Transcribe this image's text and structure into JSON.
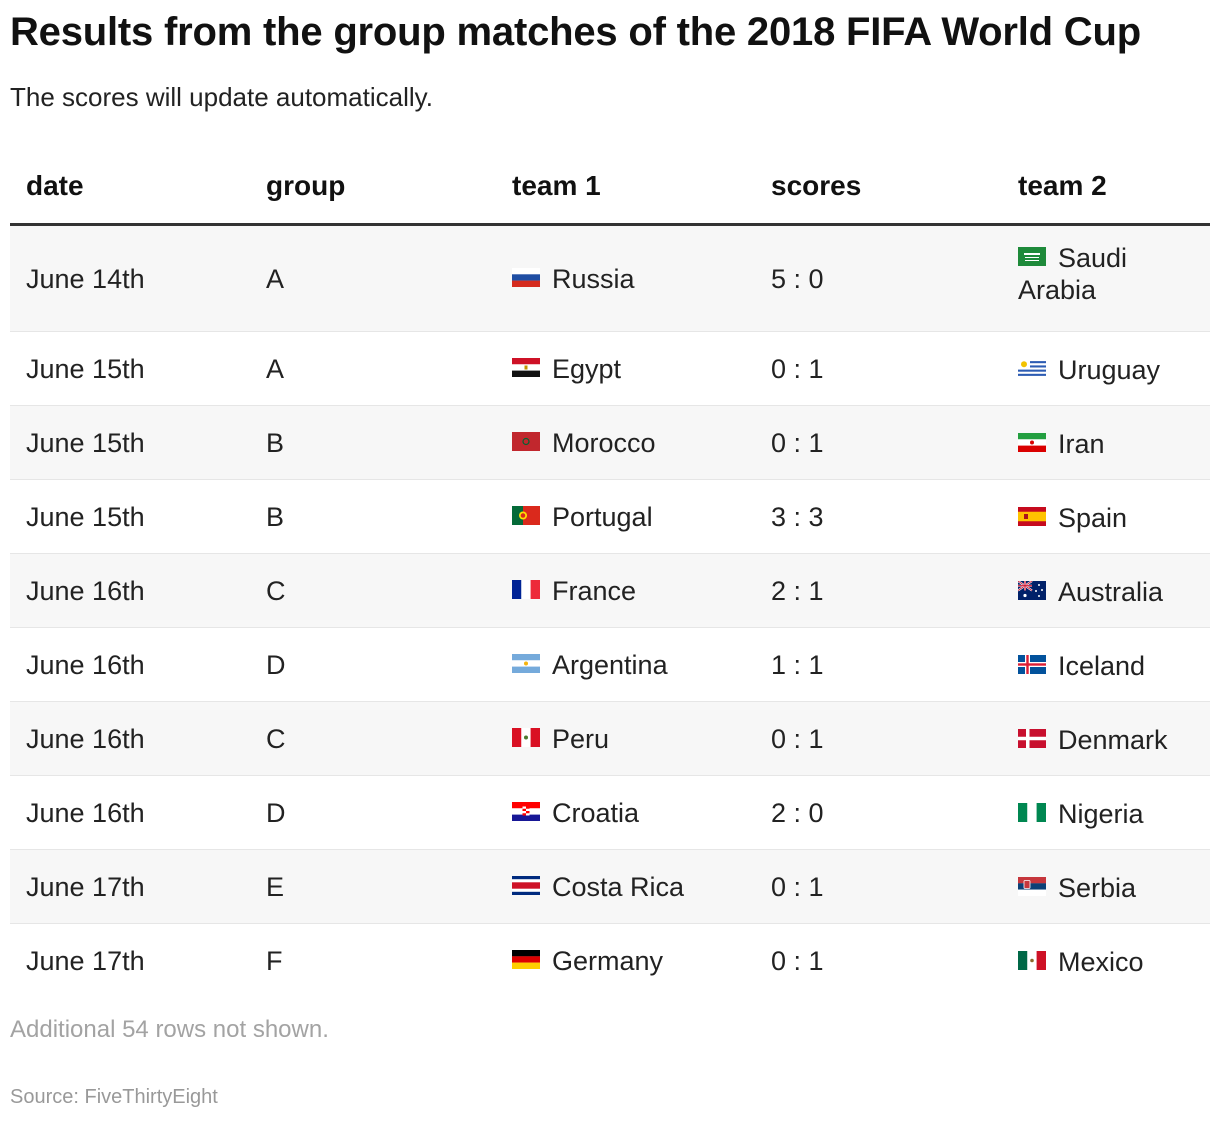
{
  "title": "Results from the group matches of the 2018 FIFA World Cup",
  "subtitle": "The scores will update automatically.",
  "chart_data": {
    "type": "table",
    "columns": [
      "date",
      "group",
      "team 1",
      "scores",
      "team 2"
    ],
    "rows": [
      {
        "date": "June 14th",
        "group": "A",
        "team1": "Russia",
        "flag1": "flag-russia",
        "score": "5 : 0",
        "team2": "Saudi Arabia",
        "flag2": "flag-saudi-arabia"
      },
      {
        "date": "June 15th",
        "group": "A",
        "team1": "Egypt",
        "flag1": "flag-egypt",
        "score": "0 : 1",
        "team2": "Uruguay",
        "flag2": "flag-uruguay"
      },
      {
        "date": "June 15th",
        "group": "B",
        "team1": "Morocco",
        "flag1": "flag-morocco",
        "score": "0 : 1",
        "team2": "Iran",
        "flag2": "flag-iran"
      },
      {
        "date": "June 15th",
        "group": "B",
        "team1": "Portugal",
        "flag1": "flag-portugal",
        "score": "3 : 3",
        "team2": "Spain",
        "flag2": "flag-spain"
      },
      {
        "date": "June 16th",
        "group": "C",
        "team1": "France",
        "flag1": "flag-france",
        "score": "2 : 1",
        "team2": "Australia",
        "flag2": "flag-australia"
      },
      {
        "date": "June 16th",
        "group": "D",
        "team1": "Argentina",
        "flag1": "flag-argentina",
        "score": "1 : 1",
        "team2": "Iceland",
        "flag2": "flag-iceland"
      },
      {
        "date": "June 16th",
        "group": "C",
        "team1": "Peru",
        "flag1": "flag-peru",
        "score": "0 : 1",
        "team2": "Denmark",
        "flag2": "flag-denmark"
      },
      {
        "date": "June 16th",
        "group": "D",
        "team1": "Croatia",
        "flag1": "flag-croatia",
        "score": "2 : 0",
        "team2": "Nigeria",
        "flag2": "flag-nigeria"
      },
      {
        "date": "June 17th",
        "group": "E",
        "team1": "Costa Rica",
        "flag1": "flag-costa-rica",
        "score": "0 : 1",
        "team2": "Serbia",
        "flag2": "flag-serbia"
      },
      {
        "date": "June 17th",
        "group": "F",
        "team1": "Germany",
        "flag1": "flag-germany",
        "score": "0 : 1",
        "team2": "Mexico",
        "flag2": "flag-mexico"
      }
    ]
  },
  "note": "Additional 54 rows not shown.",
  "source": "Source: FiveThirtyEight"
}
